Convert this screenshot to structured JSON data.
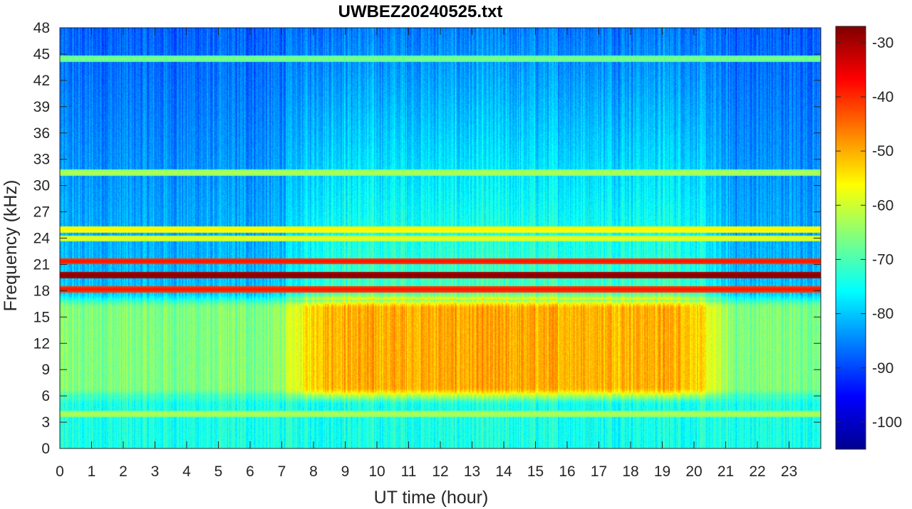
{
  "chart_data": {
    "type": "heatmap",
    "title": "UWBEZ20240525.txt",
    "xlabel": "UT time (hour)",
    "ylabel": "Frequency (kHz)",
    "xlim": [
      0,
      24
    ],
    "ylim": [
      0,
      48
    ],
    "x_ticks": [
      "0",
      "1",
      "2",
      "3",
      "4",
      "5",
      "6",
      "7",
      "8",
      "9",
      "10",
      "11",
      "12",
      "13",
      "14",
      "15",
      "16",
      "17",
      "18",
      "19",
      "20",
      "21",
      "22",
      "23"
    ],
    "y_ticks": [
      "0",
      "3",
      "6",
      "9",
      "12",
      "15",
      "18",
      "21",
      "24",
      "27",
      "30",
      "33",
      "36",
      "39",
      "42",
      "45",
      "48"
    ],
    "colorbar": {
      "colormap": "jet",
      "clim": [
        -105,
        -27
      ],
      "ticks": [
        "-30",
        "-40",
        "-50",
        "-60",
        "-70",
        "-80",
        "-90",
        "-100"
      ]
    },
    "grid": false,
    "narrowband_lines_khz": [
      {
        "freq": 19.8,
        "level_db": -27
      },
      {
        "freq": 21.4,
        "level_db": -38
      },
      {
        "freq": 18.2,
        "level_db": -38
      },
      {
        "freq": 25.0,
        "level_db": -55
      },
      {
        "freq": 24.0,
        "level_db": -58
      },
      {
        "freq": 31.5,
        "level_db": -62
      },
      {
        "freq": 44.5,
        "level_db": -66
      },
      {
        "freq": 4.0,
        "level_db": -62
      }
    ],
    "broadband_noise": {
      "freq_range_khz": [
        6,
        17
      ],
      "peak_time_range_hour": [
        8.5,
        19.5
      ],
      "peak_level_db": -47
    }
  }
}
